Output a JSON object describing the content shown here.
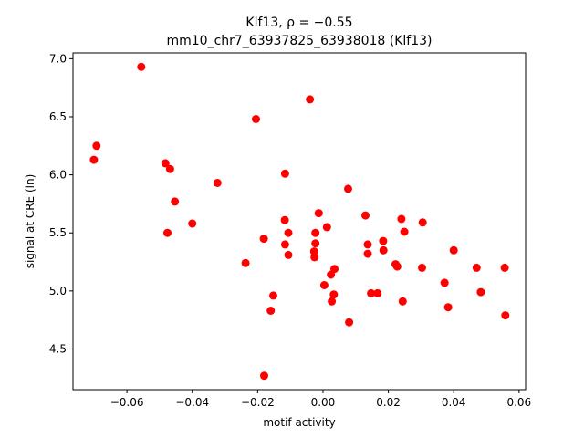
{
  "chart_data": {
    "type": "scatter",
    "title_line1": "Klf13, ρ = −0.55",
    "title_line2": "mm10_chr7_63937825_63938018 (Klf13)",
    "xlabel": "motif activity",
    "ylabel": "signal at CRE (ln)",
    "xlim": [
      -0.0765,
      0.062
    ],
    "ylim": [
      4.15,
      7.05
    ],
    "xticks": [
      -0.06,
      -0.04,
      -0.02,
      0.0,
      0.02,
      0.04,
      0.06
    ],
    "xtick_labels": [
      "−0.06",
      "−0.04",
      "−0.02",
      "0.00",
      "0.02",
      "0.04",
      "0.06"
    ],
    "yticks": [
      4.5,
      5.0,
      5.5,
      6.0,
      6.5,
      7.0
    ],
    "ytick_labels": [
      "4.5",
      "5.0",
      "5.5",
      "6.0",
      "6.5",
      "7.0"
    ],
    "grid": false,
    "marker_color": "#ff0000",
    "points": [
      {
        "x": -0.0556,
        "y": 6.93
      },
      {
        "x": -0.0693,
        "y": 6.25
      },
      {
        "x": -0.0701,
        "y": 6.13
      },
      {
        "x": -0.0482,
        "y": 6.1
      },
      {
        "x": -0.0468,
        "y": 6.05
      },
      {
        "x": -0.0453,
        "y": 5.77
      },
      {
        "x": -0.0476,
        "y": 5.5
      },
      {
        "x": -0.04,
        "y": 5.58
      },
      {
        "x": -0.0323,
        "y": 5.93
      },
      {
        "x": -0.0237,
        "y": 5.24
      },
      {
        "x": -0.0205,
        "y": 6.48
      },
      {
        "x": -0.0181,
        "y": 5.45
      },
      {
        "x": -0.0152,
        "y": 4.96
      },
      {
        "x": -0.016,
        "y": 4.83
      },
      {
        "x": -0.018,
        "y": 4.27
      },
      {
        "x": -0.004,
        "y": 6.65
      },
      {
        "x": -0.0116,
        "y": 6.01
      },
      {
        "x": -0.0117,
        "y": 5.61
      },
      {
        "x": -0.0106,
        "y": 5.5
      },
      {
        "x": -0.0116,
        "y": 5.4
      },
      {
        "x": -0.0106,
        "y": 5.31
      },
      {
        "x": -0.0013,
        "y": 5.67
      },
      {
        "x": -0.0023,
        "y": 5.5
      },
      {
        "x": -0.0023,
        "y": 5.41
      },
      {
        "x": -0.0027,
        "y": 5.34
      },
      {
        "x": -0.0026,
        "y": 5.29
      },
      {
        "x": 0.0012,
        "y": 5.55
      },
      {
        "x": 0.0035,
        "y": 5.19
      },
      {
        "x": 0.0024,
        "y": 5.14
      },
      {
        "x": 0.0004,
        "y": 5.05
      },
      {
        "x": 0.0033,
        "y": 4.97
      },
      {
        "x": 0.0027,
        "y": 4.91
      },
      {
        "x": 0.008,
        "y": 4.73
      },
      {
        "x": 0.0077,
        "y": 5.88
      },
      {
        "x": 0.013,
        "y": 5.65
      },
      {
        "x": 0.0137,
        "y": 5.4
      },
      {
        "x": 0.0137,
        "y": 5.32
      },
      {
        "x": 0.0184,
        "y": 5.43
      },
      {
        "x": 0.0185,
        "y": 5.35
      },
      {
        "x": 0.0147,
        "y": 4.98
      },
      {
        "x": 0.0167,
        "y": 4.98
      },
      {
        "x": 0.0222,
        "y": 5.23
      },
      {
        "x": 0.0227,
        "y": 5.21
      },
      {
        "x": 0.024,
        "y": 5.62
      },
      {
        "x": 0.0249,
        "y": 5.51
      },
      {
        "x": 0.0244,
        "y": 4.91
      },
      {
        "x": 0.0305,
        "y": 5.59
      },
      {
        "x": 0.0303,
        "y": 5.2
      },
      {
        "x": 0.04,
        "y": 5.35
      },
      {
        "x": 0.0372,
        "y": 5.07
      },
      {
        "x": 0.0383,
        "y": 4.86
      },
      {
        "x": 0.047,
        "y": 5.2
      },
      {
        "x": 0.0483,
        "y": 4.99
      },
      {
        "x": 0.0556,
        "y": 5.2
      },
      {
        "x": 0.0558,
        "y": 4.79
      }
    ]
  }
}
